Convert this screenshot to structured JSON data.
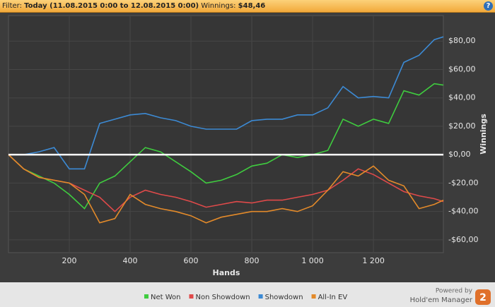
{
  "header": {
    "filter_label": "Filter:",
    "filter_value": "Today (11.08.2015 0:00 to 12.08.2015 0:00)",
    "winnings_label": "Winnings:",
    "winnings_value": "$48,46",
    "help_icon": "?"
  },
  "branding": {
    "powered_by": "Powered by",
    "product": "Hold'em Manager",
    "logo": "2"
  },
  "chart_data": {
    "type": "line",
    "x_label": "Hands",
    "y_label": "Winnings",
    "x": [
      0,
      50,
      100,
      150,
      200,
      250,
      300,
      350,
      400,
      450,
      500,
      550,
      600,
      650,
      700,
      750,
      800,
      850,
      900,
      950,
      1000,
      1050,
      1100,
      1150,
      1200,
      1250,
      1300,
      1350,
      1400,
      1430
    ],
    "series": [
      {
        "name": "Net Won",
        "color": "#3fcc3f",
        "values": [
          0,
          -10,
          -15,
          -20,
          -28,
          -38,
          -20,
          -15,
          -5,
          5,
          2,
          -5,
          -12,
          -20,
          -18,
          -14,
          -8,
          -6,
          0,
          -2,
          0,
          3,
          25,
          20,
          25,
          22,
          45,
          42,
          50,
          49
        ]
      },
      {
        "name": "Non Showdown",
        "color": "#e04a4a",
        "values": [
          0,
          -10,
          -16,
          -18,
          -20,
          -25,
          -30,
          -40,
          -30,
          -25,
          -28,
          -30,
          -33,
          -37,
          -35,
          -33,
          -34,
          -32,
          -32,
          -30,
          -28,
          -25,
          -18,
          -10,
          -14,
          -20,
          -26,
          -29,
          -31,
          -33
        ]
      },
      {
        "name": "Showdown",
        "color": "#3c8ad4",
        "values": [
          0,
          0,
          2,
          5,
          -10,
          -10,
          22,
          25,
          28,
          29,
          26,
          24,
          20,
          18,
          18,
          18,
          24,
          25,
          25,
          28,
          28,
          33,
          48,
          40,
          41,
          40,
          65,
          70,
          81,
          83
        ]
      },
      {
        "name": "All-In EV",
        "color": "#e38a2a",
        "values": [
          0,
          -10,
          -16,
          -18,
          -20,
          -28,
          -48,
          -45,
          -28,
          -35,
          -38,
          -40,
          -43,
          -48,
          -44,
          -42,
          -40,
          -40,
          -38,
          -40,
          -36,
          -25,
          -12,
          -15,
          -8,
          -18,
          -22,
          -38,
          -35,
          -32
        ]
      }
    ],
    "xlim": [
      0,
      1430
    ],
    "xticks": [
      200,
      400,
      600,
      800,
      {
        "value": 1000,
        "label": "1 000"
      },
      {
        "value": 1200,
        "label": "1 200"
      }
    ],
    "ylim": [
      -69,
      98
    ],
    "yticks": [
      {
        "value": -60,
        "label": "-$60,00"
      },
      {
        "value": -40,
        "label": "-$40,00"
      },
      {
        "value": -20,
        "label": "-$20,00"
      },
      {
        "value": 0,
        "label": "$0,00"
      },
      {
        "value": 20,
        "label": "$20,00"
      },
      {
        "value": 40,
        "label": "$40,00"
      },
      {
        "value": 60,
        "label": "$60,00"
      },
      {
        "value": 80,
        "label": "$80,00"
      }
    ],
    "grid": true,
    "zero_line": true,
    "legend": "bottom"
  }
}
